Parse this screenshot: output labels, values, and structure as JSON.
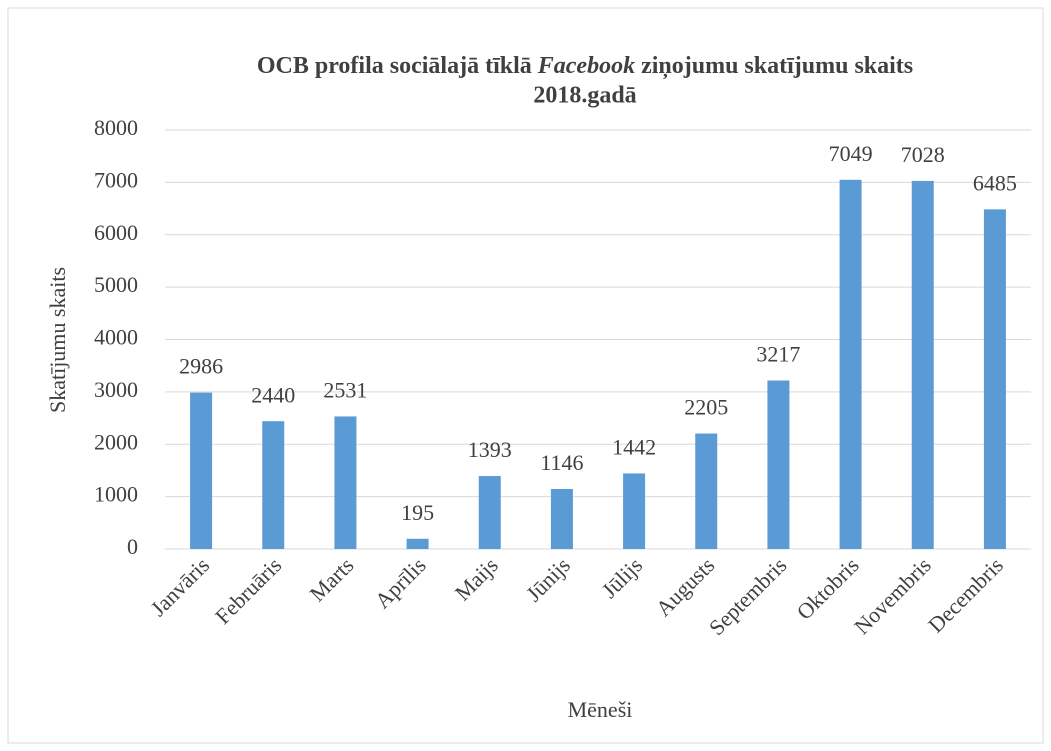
{
  "chart_data": {
    "type": "bar",
    "title": [
      "OCB profila sociālajā tīklā",
      "Facebook",
      "ziņojumu skatījumu skaits",
      "2018.gadā"
    ],
    "xlabel": "Mēneši",
    "ylabel": "Skatījumu skaits",
    "categories": [
      "Janvāris",
      "Februāris",
      "Marts",
      "Aprīlis",
      "Maijs",
      "Jūnijs",
      "Jūlijs",
      "Augusts",
      "Septembris",
      "Oktobris",
      "Novembris",
      "Decembris"
    ],
    "values": [
      2986,
      2440,
      2531,
      195,
      1393,
      1146,
      1442,
      2205,
      3217,
      7049,
      7028,
      6485
    ],
    "color": "#5b9bd5",
    "ylim": [
      0,
      8000
    ],
    "yticks": [
      0,
      1000,
      2000,
      3000,
      4000,
      5000,
      6000,
      7000,
      8000
    ],
    "grid": true
  }
}
